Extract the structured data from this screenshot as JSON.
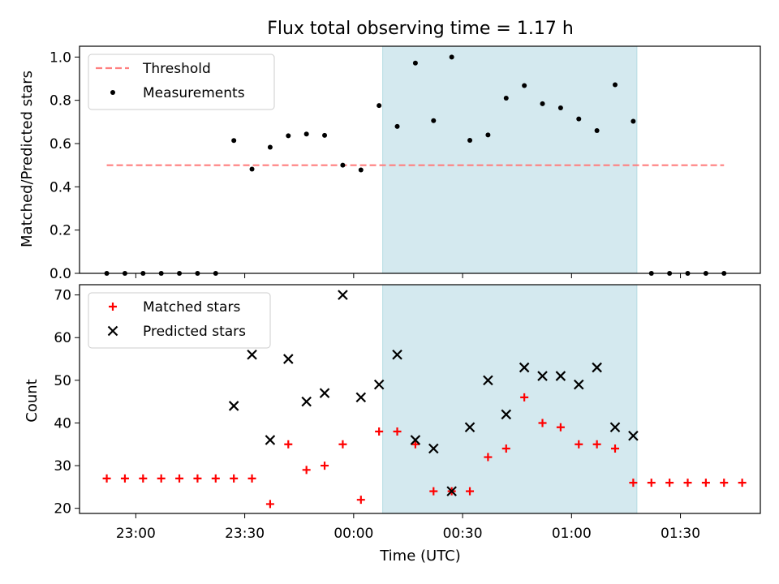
{
  "chart_data": {
    "type": "scatter",
    "title": "Flux total observing time = 1.17 h",
    "xlabel": "Time (UTC)",
    "x_ticks": [
      "23:00",
      "23:30",
      "00:00",
      "00:30",
      "01:00",
      "01:30"
    ],
    "x_tick_minutes": [
      -60,
      -30,
      0,
      30,
      60,
      90
    ],
    "x_range_minutes": [
      -75.5,
      112
    ],
    "highlight_span_minutes": [
      8,
      78
    ],
    "highlight_color": "#d4e9ef",
    "x_minutes": [
      -68,
      -63,
      -58,
      -53,
      -48,
      -43,
      -38,
      -33,
      -28,
      -23,
      -18,
      -13,
      -8,
      -3,
      2,
      7,
      12,
      17,
      22,
      27,
      32,
      37,
      42,
      47,
      52,
      57,
      62,
      67,
      72,
      77,
      82,
      87,
      92,
      97,
      102,
      107
    ],
    "panels": [
      {
        "ylabel": "Matched/Predicted stars",
        "ylim": [
          0,
          1.05
        ],
        "yticks": [
          "0.0",
          "0.2",
          "0.4",
          "0.6",
          "0.8",
          "1.0"
        ],
        "ytick_values": [
          0,
          0.2,
          0.4,
          0.6,
          0.8,
          1.0
        ],
        "legend_position": "upper left",
        "threshold": {
          "name": "Threshold",
          "value": 0.5,
          "x_start": -68,
          "x_end": 102,
          "color": "#ff7f7f"
        },
        "series": [
          {
            "name": "Measurements",
            "color": "#000000",
            "marker": "dot",
            "values": [
              0,
              0,
              0,
              0,
              0,
              0,
              0,
              0.614,
              0.482,
              0.583,
              0.636,
              0.644,
              0.638,
              0.5,
              0.478,
              0.776,
              0.679,
              0.972,
              0.706,
              1.0,
              0.615,
              0.64,
              0.81,
              0.868,
              0.784,
              0.765,
              0.714,
              0.66,
              0.872,
              0.703,
              0,
              0,
              0,
              0,
              0,
              null
            ]
          }
        ]
      },
      {
        "ylabel": "Count",
        "ylim": [
          18.8,
          72.4
        ],
        "yticks": [
          "20",
          "30",
          "40",
          "50",
          "60",
          "70"
        ],
        "ytick_values": [
          20,
          30,
          40,
          50,
          60,
          70
        ],
        "legend_position": "upper left",
        "series": [
          {
            "name": "Matched stars",
            "color": "#ff0000",
            "marker": "plus",
            "values": [
              27,
              27,
              27,
              27,
              27,
              27,
              27,
              27,
              27,
              21,
              35,
              29,
              30,
              35,
              22,
              38,
              38,
              35,
              24,
              24,
              24,
              32,
              34,
              46,
              40,
              39,
              35,
              35,
              34,
              26,
              26,
              26,
              26,
              26,
              26,
              26
            ]
          },
          {
            "name": "Predicted stars",
            "color": "#000000",
            "marker": "x",
            "values": [
              null,
              null,
              null,
              null,
              null,
              null,
              null,
              44,
              56,
              36,
              55,
              45,
              47,
              70,
              46,
              49,
              56,
              36,
              34,
              24,
              39,
              50,
              42,
              53,
              51,
              51,
              49,
              53,
              39,
              37,
              null,
              null,
              null,
              null,
              null,
              null
            ]
          }
        ]
      }
    ]
  }
}
